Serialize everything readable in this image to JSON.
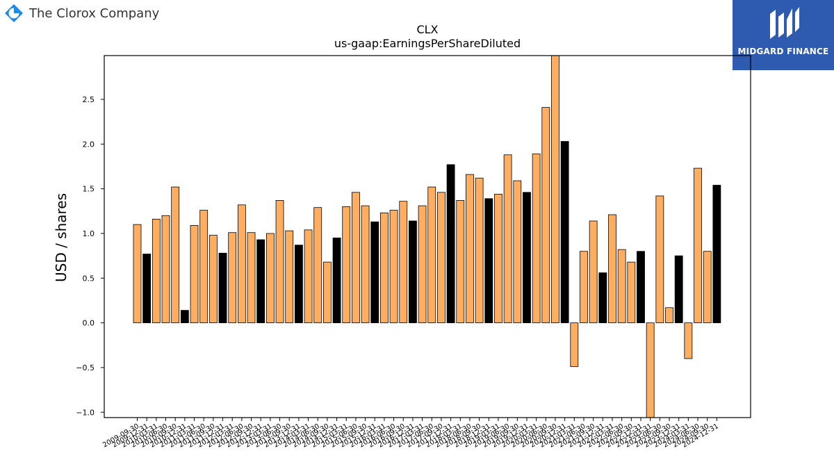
{
  "header": {
    "company_name": "The Clorox Company",
    "brand_name": "MIDGARD FINANCE",
    "logo_icon": "clorox-logo-icon",
    "brand_icon": "midgard-logo-icon",
    "brand_color": "#2e5bb0"
  },
  "chart_data": {
    "type": "bar",
    "title": "CLX",
    "subtitle": "us-gaap:EarningsPerShareDiluted",
    "xlabel": "",
    "ylabel": "USD / shares",
    "ylim": [
      -1.06,
      2.99
    ],
    "yticks": [
      -1.0,
      -0.5,
      0.0,
      0.5,
      1.0,
      1.5,
      2.0,
      2.5
    ],
    "grid": false,
    "colors": {
      "quarter": "#FFAD60",
      "annual": "#000000",
      "edge": "#000000"
    },
    "categories": [
      "2009-09-30",
      "2009-12-31",
      "2010-03-31",
      "2010-06-30",
      "2010-09-30",
      "2010-12-31",
      "2011-03-31",
      "2011-06-30",
      "2011-09-30",
      "2011-12-31",
      "2012-03-31",
      "2012-06-30",
      "2012-09-30",
      "2012-12-31",
      "2013-03-31",
      "2013-06-30",
      "2013-09-30",
      "2013-12-31",
      "2014-03-31",
      "2014-06-30",
      "2014-09-30",
      "2014-12-31",
      "2015-03-31",
      "2015-06-30",
      "2015-09-30",
      "2015-12-31",
      "2016-03-31",
      "2016-06-30",
      "2016-09-30",
      "2016-12-31",
      "2017-03-31",
      "2017-06-30",
      "2017-09-30",
      "2017-12-31",
      "2018-03-31",
      "2018-06-30",
      "2018-09-30",
      "2018-12-31",
      "2019-03-31",
      "2019-06-30",
      "2019-09-30",
      "2019-12-31",
      "2020-03-31",
      "2020-06-30",
      "2020-09-30",
      "2020-12-31",
      "2021-03-31",
      "2021-06-30",
      "2021-09-30",
      "2021-12-31",
      "2022-03-31",
      "2022-06-30",
      "2022-09-30",
      "2022-12-31",
      "2023-03-31",
      "2023-06-30",
      "2023-09-30",
      "2023-12-31",
      "2024-03-31",
      "2024-06-30",
      "2024-09-30",
      "2024-12-31"
    ],
    "xtick_labels": [
      "2009-09-30",
      "2009-12-31",
      "2010-03-31",
      "2010-06-30",
      "2010-09-30",
      "2010-12-31",
      "2011-03-31",
      "2011-06-30",
      "2011-09-30",
      "2011-12-31",
      "2012-03-31",
      "2012-06-30",
      "2012-09-30",
      "2012-12-31",
      "2013-03-31",
      "2013-06-30",
      "2013-09-30",
      "2013-12-31",
      "2014-03-31",
      "2014-06-30",
      "2014-09-30",
      "2014-12-31",
      "2015-03-31",
      "2015-06-30",
      "2015-09-30",
      "2015-12-31",
      "2016-03-31",
      "2016-06-30",
      "2016-09-30",
      "2016-12-31",
      "2017-03-31",
      "2017-06-30",
      "2017-09-30",
      "2017-12-31",
      "2018-03-31",
      "2018-06-30",
      "2018-09-30",
      "2018-12-31",
      "2019-03-31",
      "2019-06-30",
      "2019-09-30",
      "2019-12-31",
      "2020-03-31",
      "2020-06-30",
      "2020-09-30",
      "2020-12-31",
      "2021-03-31",
      "2021-06-30",
      "2021-09-30",
      "2021-12-31",
      "2022-03-31",
      "2022-06-30",
      "2022-09-30",
      "2022-12-31",
      "2023-03-31",
      "2023-06-30",
      "2023-09-30",
      "2023-12-31",
      "2024-03-31",
      "2024-06-30",
      "2024-09-30",
      "2024-12-31"
    ],
    "values": [
      1.1,
      0.77,
      1.16,
      1.2,
      1.52,
      0.14,
      1.09,
      1.26,
      0.98,
      0.78,
      1.01,
      1.32,
      1.01,
      0.93,
      1.0,
      1.37,
      1.03,
      0.87,
      1.04,
      1.29,
      0.68,
      0.95,
      1.3,
      1.46,
      1.31,
      1.13,
      1.23,
      1.26,
      1.36,
      1.14,
      1.31,
      1.52,
      1.46,
      1.77,
      1.37,
      1.66,
      1.62,
      1.39,
      1.44,
      1.88,
      1.59,
      1.46,
      1.89,
      2.41,
      3.0,
      2.03,
      -0.49,
      0.8,
      1.14,
      0.56,
      1.21,
      0.82,
      0.68,
      0.8,
      -1.1,
      1.42,
      0.17,
      0.75,
      -0.4,
      1.73,
      0.8,
      1.54
    ],
    "annual": [
      false,
      true,
      false,
      false,
      false,
      true,
      false,
      false,
      false,
      true,
      false,
      false,
      false,
      true,
      false,
      false,
      false,
      true,
      false,
      false,
      false,
      true,
      false,
      false,
      false,
      true,
      false,
      false,
      false,
      true,
      false,
      false,
      false,
      true,
      false,
      false,
      false,
      true,
      false,
      false,
      false,
      true,
      false,
      false,
      false,
      true,
      false,
      false,
      false,
      true,
      false,
      false,
      false,
      true,
      false,
      false,
      false,
      true,
      false,
      false,
      false,
      true
    ]
  }
}
